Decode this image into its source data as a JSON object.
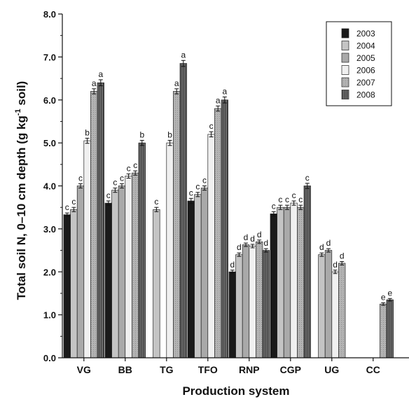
{
  "chart_data": {
    "type": "bar",
    "xlabel": "Production system",
    "ylabel_main": "Total soil N, 0–10 cm depth (g kg",
    "ylabel_sup": "-1",
    "ylabel_end": " soil)",
    "ylim": [
      0.0,
      8.0
    ],
    "yticks": [
      "0.0",
      "1.0",
      "2.0",
      "3.0",
      "4.0",
      "5.0",
      "6.0",
      "7.0",
      "8.0"
    ],
    "categories": [
      "VG",
      "BB",
      "TG",
      "TFO",
      "RNP",
      "CGP",
      "UG",
      "CC"
    ],
    "legend_position": "top-right",
    "series": [
      {
        "name": "2003",
        "color": "#1a1a1a",
        "values": [
          3.33,
          3.6,
          null,
          3.65,
          2.0,
          3.35,
          null,
          null
        ],
        "errors": [
          0.04,
          0.05,
          null,
          0.06,
          0.04,
          0.05,
          null,
          null
        ],
        "sig": [
          "c",
          "c",
          "",
          "c",
          "d",
          "c",
          "",
          ""
        ]
      },
      {
        "name": "2004",
        "color": "#c4c4c4",
        "values": [
          3.45,
          3.9,
          3.45,
          3.8,
          2.4,
          3.5,
          2.4,
          null
        ],
        "errors": [
          0.05,
          0.05,
          0.05,
          0.05,
          0.04,
          0.05,
          0.04,
          null
        ],
        "sig": [
          "c",
          "c",
          "c",
          "c",
          "d",
          "c",
          "d",
          ""
        ]
      },
      {
        "name": "2005",
        "color": "#a9a9a9",
        "values": [
          4.0,
          4.0,
          null,
          3.95,
          2.63,
          3.5,
          2.5,
          null
        ],
        "errors": [
          0.05,
          0.05,
          null,
          0.05,
          0.04,
          0.05,
          0.04,
          null
        ],
        "sig": [
          "c",
          "c",
          "",
          "c",
          "d",
          "c",
          "d",
          ""
        ]
      },
      {
        "name": "2006",
        "color": "#f0f0f0",
        "values": [
          5.05,
          4.23,
          5.0,
          5.2,
          2.6,
          3.6,
          2.0,
          null
        ],
        "errors": [
          0.06,
          0.05,
          0.06,
          0.06,
          0.04,
          0.05,
          0.04,
          null
        ],
        "sig": [
          "b",
          "c",
          "b",
          "c",
          "d",
          "c",
          "d",
          ""
        ]
      },
      {
        "name": "2007",
        "color": "#b8b8b8",
        "values": [
          6.2,
          4.3,
          6.2,
          5.8,
          2.7,
          3.5,
          2.2,
          1.25
        ],
        "errors": [
          0.06,
          0.05,
          0.06,
          0.06,
          0.04,
          0.05,
          0.04,
          0.03
        ],
        "sig": [
          "a",
          "c",
          "a",
          "a",
          "d",
          "c",
          "d",
          "e"
        ]
      },
      {
        "name": "2008",
        "color": "#5e5e5e",
        "values": [
          6.4,
          5.0,
          6.85,
          6.0,
          2.5,
          4.0,
          null,
          1.35
        ],
        "errors": [
          0.07,
          0.06,
          0.07,
          0.07,
          0.04,
          0.06,
          null,
          0.03
        ],
        "sig": [
          "a",
          "b",
          "a",
          "a",
          "d",
          "c",
          "",
          "e"
        ]
      }
    ]
  }
}
